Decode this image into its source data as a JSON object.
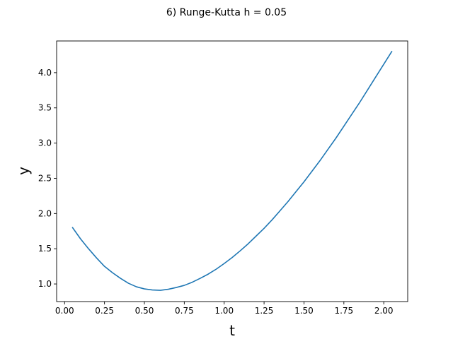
{
  "chart_data": {
    "type": "line",
    "title": "6) Runge-Kutta h = 0.05",
    "xlabel": "t",
    "ylabel": "y",
    "xlim": [
      -0.05,
      2.15
    ],
    "ylim": [
      0.75,
      4.45
    ],
    "xticks": [
      0.0,
      0.25,
      0.5,
      0.75,
      1.0,
      1.25,
      1.5,
      1.75,
      2.0
    ],
    "xtick_labels": [
      "0.00",
      "0.25",
      "0.50",
      "0.75",
      "1.00",
      "1.25",
      "1.50",
      "1.75",
      "2.00"
    ],
    "yticks": [
      1.0,
      1.5,
      2.0,
      2.5,
      3.0,
      3.5,
      4.0
    ],
    "ytick_labels": [
      "1.0",
      "1.5",
      "2.0",
      "2.5",
      "3.0",
      "3.5",
      "4.0"
    ],
    "grid": false,
    "series": [
      {
        "color": "#1f77b4",
        "x": [
          0.05,
          0.1,
          0.15,
          0.2,
          0.25,
          0.3,
          0.35,
          0.4,
          0.45,
          0.5,
          0.55,
          0.6,
          0.65,
          0.7,
          0.75,
          0.8,
          0.85,
          0.9,
          0.95,
          1.0,
          1.05,
          1.1,
          1.15,
          1.2,
          1.25,
          1.3,
          1.35,
          1.4,
          1.45,
          1.5,
          1.55,
          1.6,
          1.65,
          1.7,
          1.75,
          1.8,
          1.85,
          1.9,
          1.95,
          2.0,
          2.05
        ],
        "y": [
          1.8,
          1.64,
          1.5,
          1.37,
          1.25,
          1.16,
          1.08,
          1.01,
          0.96,
          0.93,
          0.915,
          0.91,
          0.925,
          0.95,
          0.98,
          1.025,
          1.08,
          1.14,
          1.21,
          1.29,
          1.375,
          1.47,
          1.57,
          1.68,
          1.79,
          1.91,
          2.04,
          2.17,
          2.31,
          2.45,
          2.6,
          2.75,
          2.91,
          3.07,
          3.24,
          3.41,
          3.58,
          3.76,
          3.94,
          4.12,
          4.3
        ]
      }
    ]
  }
}
